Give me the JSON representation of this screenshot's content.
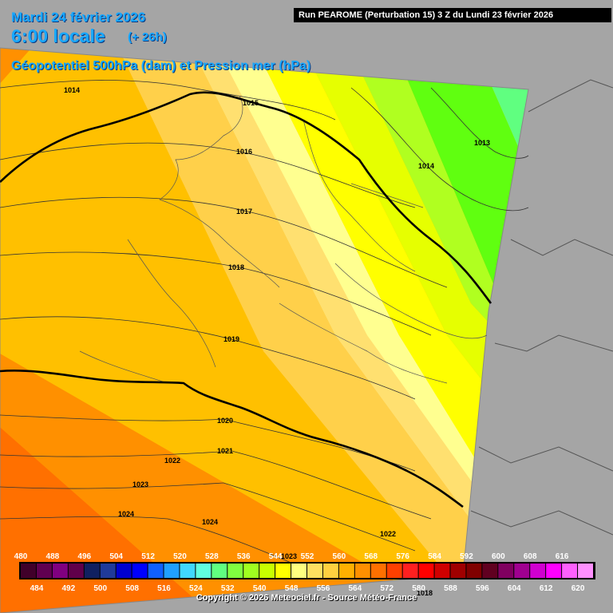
{
  "header": {
    "date": "Mardi 24 février 2026",
    "local_time": "6:00 locale",
    "range": "(+ 26h)",
    "parameter": "Géopotentiel 500hPa (dam) et Pression mer (hPa)",
    "run_info": "Run PEAROME (Perturbation 15) 3 Z du Lundi 23 février 2026"
  },
  "isobars": [
    {
      "label": "1013"
    },
    {
      "label": "1014"
    },
    {
      "label": "1014"
    },
    {
      "label": "1015"
    },
    {
      "label": "1016"
    },
    {
      "label": "1017"
    },
    {
      "label": "1018"
    },
    {
      "label": "1019"
    },
    {
      "label": "1020"
    },
    {
      "label": "1021"
    },
    {
      "label": "1022"
    },
    {
      "label": "1023"
    },
    {
      "label": "1024"
    },
    {
      "label": "1022"
    },
    {
      "label": "1023"
    },
    {
      "label": "1024"
    },
    {
      "label": "1018"
    }
  ],
  "colors": {
    "background": "#a5a5a5",
    "title": "#18a8ff",
    "bold_isobar": "#000000"
  },
  "legend": {
    "top_labels": [
      "480",
      "496",
      "512",
      "528",
      "544",
      "560",
      "576",
      "592",
      "608"
    ],
    "top_labels_b": [
      "488",
      "504",
      "520",
      "536",
      "552",
      "568",
      "584",
      "600",
      "616"
    ],
    "bottom_labels": [
      "484",
      "500",
      "516",
      "532",
      "548",
      "564",
      "580",
      "596",
      "612"
    ],
    "bottom_labels_b": [
      "492",
      "508",
      "524",
      "540",
      "556",
      "572",
      "588",
      "604",
      "620"
    ],
    "colors": [
      "#40002a",
      "#600050",
      "#800080",
      "#60004a",
      "#102060",
      "#203a9a",
      "#0000d0",
      "#0000ff",
      "#1060ff",
      "#20a0ff",
      "#40d8ff",
      "#60ffe0",
      "#60ff80",
      "#80ff40",
      "#a0ff20",
      "#c8ff00",
      "#ffff00",
      "#ffff80",
      "#ffe060",
      "#ffd040",
      "#ffb000",
      "#ff9000",
      "#ff7000",
      "#ff4000",
      "#ff2020",
      "#ff0000",
      "#d00000",
      "#a00000",
      "#800000",
      "#600020",
      "#800060",
      "#a00090",
      "#d000d0",
      "#ff00ff",
      "#ff60ff",
      "#ff90ff"
    ]
  },
  "copyright": "Copyright © 2026 Meteociel.fr - Source Météo-France"
}
